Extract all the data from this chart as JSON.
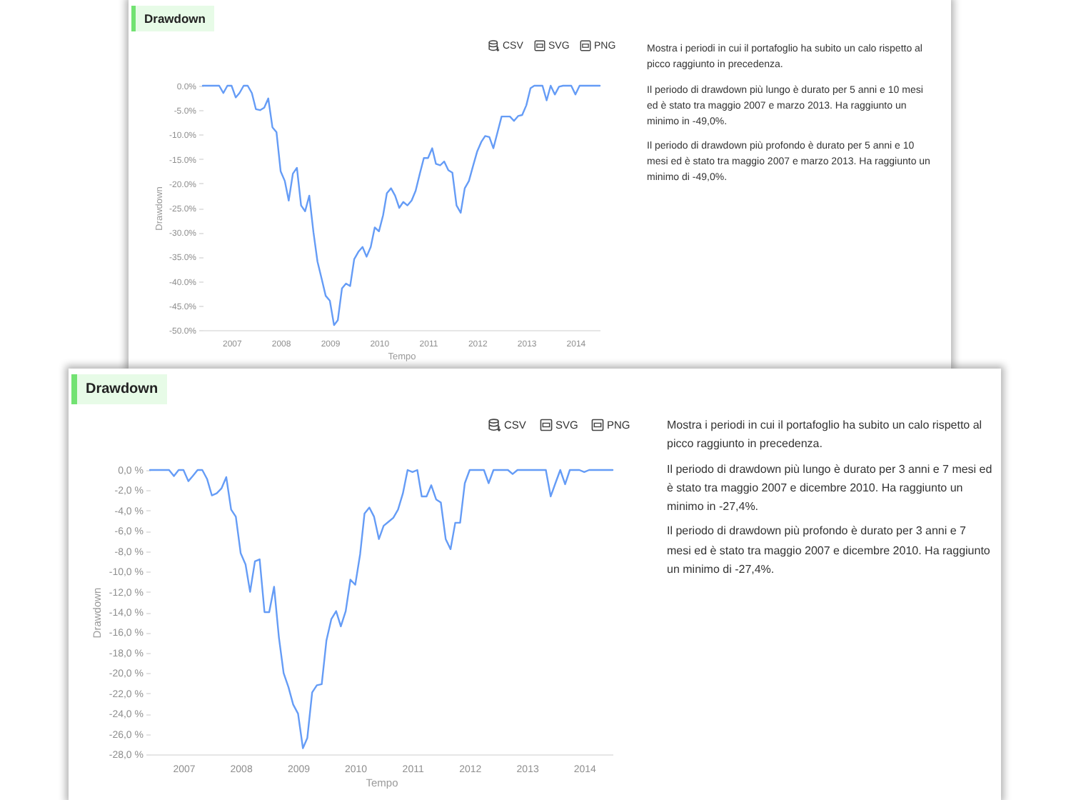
{
  "chart_data": [
    {
      "type": "line",
      "title": "Drawdown",
      "xlabel": "Tempo",
      "ylabel": "Drawdown",
      "color": "#659cf6",
      "annotations": [
        "CSV",
        "SVG",
        "PNG"
      ],
      "x": [
        "2006-06",
        "2006-07",
        "2006-08",
        "2006-09",
        "2006-10",
        "2006-11",
        "2006-12",
        "2007-01",
        "2007-02",
        "2007-03",
        "2007-04",
        "2007-05",
        "2007-06",
        "2007-07",
        "2007-08",
        "2007-09",
        "2007-10",
        "2007-11",
        "2007-12",
        "2008-01",
        "2008-02",
        "2008-03",
        "2008-04",
        "2008-05",
        "2008-06",
        "2008-07",
        "2008-08",
        "2008-09",
        "2008-10",
        "2008-11",
        "2008-12",
        "2009-01",
        "2009-02",
        "2009-03",
        "2009-04",
        "2009-05",
        "2009-06",
        "2009-07",
        "2009-08",
        "2009-09",
        "2009-10",
        "2009-11",
        "2009-12",
        "2010-01",
        "2010-02",
        "2010-03",
        "2010-04",
        "2010-05",
        "2010-06",
        "2010-07",
        "2010-08",
        "2010-09",
        "2010-10",
        "2010-11",
        "2010-12",
        "2011-01",
        "2011-02",
        "2011-03",
        "2011-04",
        "2011-05",
        "2011-06",
        "2011-07",
        "2011-08",
        "2011-09",
        "2011-10",
        "2011-11",
        "2011-12",
        "2012-01",
        "2012-02",
        "2012-03",
        "2012-04",
        "2012-05",
        "2012-06",
        "2012-07",
        "2012-08",
        "2012-09",
        "2012-10",
        "2012-11",
        "2012-12",
        "2013-01",
        "2013-02",
        "2013-03",
        "2013-04",
        "2013-05",
        "2013-06",
        "2013-07",
        "2013-08",
        "2013-09",
        "2013-10",
        "2013-11",
        "2013-12",
        "2014-01",
        "2014-02",
        "2014-03",
        "2014-04",
        "2014-05",
        "2014-06",
        "2014-07"
      ],
      "values": [
        0,
        0,
        0,
        0,
        0,
        -1.5,
        0,
        0,
        -2.4,
        -1.5,
        0,
        0,
        -1.5,
        -4.8,
        -5.0,
        -4.5,
        -2.6,
        -8.5,
        -9.5,
        -17.5,
        -19.5,
        -23.5,
        -18.0,
        -16.8,
        -24.5,
        -25.7,
        -22.5,
        -30.0,
        -36.0,
        -39.5,
        -43.0,
        -44.0,
        -49.0,
        -48.0,
        -41.5,
        -40.5,
        -41.0,
        -35.5,
        -34.0,
        -33.0,
        -35.0,
        -33.0,
        -29.0,
        -29.8,
        -26.5,
        -22.0,
        -21.0,
        -22.5,
        -25.0,
        -23.8,
        -24.5,
        -23.5,
        -21.5,
        -18.0,
        -14.8,
        -14.8,
        -12.8,
        -16.0,
        -16.3,
        -15.5,
        -17.3,
        -17.8,
        -24.5,
        -26.0,
        -21.0,
        -19.5,
        -16.5,
        -13.5,
        -11.5,
        -10.3,
        -10.5,
        -12.8,
        -9.5,
        -6.3,
        -6.3,
        -6.3,
        -7.2,
        -6.2,
        -6.0,
        -4.0,
        -0.5,
        0,
        0,
        0,
        -3.0,
        0,
        -1.8,
        -0.2,
        0,
        0,
        0,
        -1.8,
        0,
        0,
        0,
        0,
        0,
        0
      ],
      "xlim": [
        "2006-06",
        "2014-07"
      ],
      "xticks": [
        "2007",
        "2008",
        "2009",
        "2010",
        "2011",
        "2012",
        "2013",
        "2014"
      ],
      "ylim": [
        -50,
        0
      ],
      "yticks": [
        {
          "value": 0,
          "label": "0.0%"
        },
        {
          "value": -5,
          "label": "-5.0%"
        },
        {
          "value": -10,
          "label": "-10.0%"
        },
        {
          "value": -15,
          "label": "-15.0%"
        },
        {
          "value": -20,
          "label": "-20.0%"
        },
        {
          "value": -25,
          "label": "-25.0%"
        },
        {
          "value": -30,
          "label": "-30.0%"
        },
        {
          "value": -35,
          "label": "-35.0%"
        },
        {
          "value": -40,
          "label": "-40.0%"
        },
        {
          "value": -45,
          "label": "-45.0%"
        },
        {
          "value": -50,
          "label": "-50.0%"
        }
      ]
    },
    {
      "type": "other",
      "annotations": [
        "Mostra i periodi in cui il portafoglio ha subito un calo rispetto al picco raggiunto in precedenza.",
        "Il periodo di drawdown più lungo è durato per 5 anni e 10 mesi ed è stato tra maggio 2007 e marzo 2013. Ha raggiunto un minimo in -49,0%.",
        "Il periodo di drawdown più profondo è durato per 5 anni e 10 mesi ed è stato tra maggio 2007 e marzo 2013. Ha raggiunto un minimo di -49,0%."
      ]
    },
    {
      "type": "line",
      "title": "Drawdown",
      "xlabel": "Tempo",
      "ylabel": "Drawdown",
      "color": "#659cf6",
      "annotations": [
        "CSV",
        "SVG",
        "PNG"
      ],
      "x": [
        "2006-06",
        "2006-07",
        "2006-08",
        "2006-09",
        "2006-10",
        "2006-11",
        "2006-12",
        "2007-01",
        "2007-02",
        "2007-03",
        "2007-04",
        "2007-05",
        "2007-06",
        "2007-07",
        "2007-08",
        "2007-09",
        "2007-10",
        "2007-11",
        "2007-12",
        "2008-01",
        "2008-02",
        "2008-03",
        "2008-04",
        "2008-05",
        "2008-06",
        "2008-07",
        "2008-08",
        "2008-09",
        "2008-10",
        "2008-11",
        "2008-12",
        "2009-01",
        "2009-02",
        "2009-03",
        "2009-04",
        "2009-05",
        "2009-06",
        "2009-07",
        "2009-08",
        "2009-09",
        "2009-10",
        "2009-11",
        "2009-12",
        "2010-01",
        "2010-02",
        "2010-03",
        "2010-04",
        "2010-05",
        "2010-06",
        "2010-07",
        "2010-08",
        "2010-09",
        "2010-10",
        "2010-11",
        "2010-12",
        "2011-01",
        "2011-02",
        "2011-03",
        "2011-04",
        "2011-05",
        "2011-06",
        "2011-07",
        "2011-08",
        "2011-09",
        "2011-10",
        "2011-11",
        "2011-12",
        "2012-01",
        "2012-02",
        "2012-03",
        "2012-04",
        "2012-05",
        "2012-06",
        "2012-07",
        "2012-08",
        "2012-09",
        "2012-10",
        "2012-11",
        "2012-12",
        "2013-01",
        "2013-02",
        "2013-03",
        "2013-04",
        "2013-05",
        "2013-06",
        "2013-07",
        "2013-08",
        "2013-09",
        "2013-10",
        "2013-11",
        "2013-12",
        "2014-01",
        "2014-02",
        "2014-03",
        "2014-04",
        "2014-05",
        "2014-06",
        "2014-07"
      ],
      "values": [
        0,
        0,
        0,
        0,
        0,
        -0.6,
        0,
        0,
        -1.1,
        -0.6,
        0,
        0,
        -0.9,
        -2.5,
        -2.3,
        -1.8,
        -0.7,
        -3.9,
        -4.6,
        -8.2,
        -9.3,
        -12.0,
        -9.0,
        -8.8,
        -14.0,
        -14.0,
        -11.5,
        -16.5,
        -20.0,
        -21.4,
        -23.1,
        -24.0,
        -27.4,
        -26.4,
        -21.9,
        -21.2,
        -21.1,
        -16.8,
        -14.7,
        -13.9,
        -15.4,
        -13.9,
        -10.8,
        -11.3,
        -8.3,
        -4.3,
        -3.7,
        -4.6,
        -6.8,
        -5.5,
        -5.1,
        -4.7,
        -3.9,
        -2.3,
        0,
        -0.2,
        0,
        -2.6,
        -2.6,
        -1.5,
        -2.9,
        -3.2,
        -6.8,
        -7.8,
        -5.2,
        -5.2,
        -1.3,
        0,
        0,
        0,
        0,
        -1.3,
        0,
        0,
        0,
        0,
        -0.4,
        0,
        0,
        0,
        0,
        0,
        0,
        0,
        -2.6,
        -1.3,
        0,
        -1.4,
        0,
        0,
        0,
        -0.2,
        0,
        0,
        0,
        0,
        0,
        0
      ],
      "xlim": [
        "2006-06",
        "2014-07"
      ],
      "xticks": [
        "2007",
        "2008",
        "2009",
        "2010",
        "2011",
        "2012",
        "2013",
        "2014"
      ],
      "ylim": [
        -28,
        0
      ],
      "yticks": [
        {
          "value": 0,
          "label": "0,0 %"
        },
        {
          "value": -2,
          "label": "-2,0 %"
        },
        {
          "value": -4,
          "label": "-4,0 %"
        },
        {
          "value": -6,
          "label": "-6,0 %"
        },
        {
          "value": -8,
          "label": "-8,0 %"
        },
        {
          "value": -10,
          "label": "-10,0 %"
        },
        {
          "value": -12,
          "label": "-12,0 %"
        },
        {
          "value": -14,
          "label": "-14,0 %"
        },
        {
          "value": -16,
          "label": "-16,0 %"
        },
        {
          "value": -18,
          "label": "-18,0 %"
        },
        {
          "value": -20,
          "label": "-20,0 %"
        },
        {
          "value": -22,
          "label": "-22,0 %"
        },
        {
          "value": -24,
          "label": "-24,0 %"
        },
        {
          "value": -26,
          "label": "-26,0 %"
        },
        {
          "value": -28,
          "label": "-28,0 %"
        }
      ]
    },
    {
      "type": "other",
      "annotations": [
        "Mostra i periodi in cui il portafoglio ha subito un calo rispetto al picco raggiunto in precedenza.",
        "Il periodo di drawdown più lungo è durato per 3 anni e 7 mesi ed è stato tra maggio 2007 e dicembre 2010. Ha raggiunto un minimo in -27,4%.",
        "Il periodo di drawdown più profondo è durato per 3 anni e 7 mesi ed è stato tra maggio 2007 e dicembre 2010. Ha raggiunto un minimo di -27,4%."
      ]
    }
  ]
}
